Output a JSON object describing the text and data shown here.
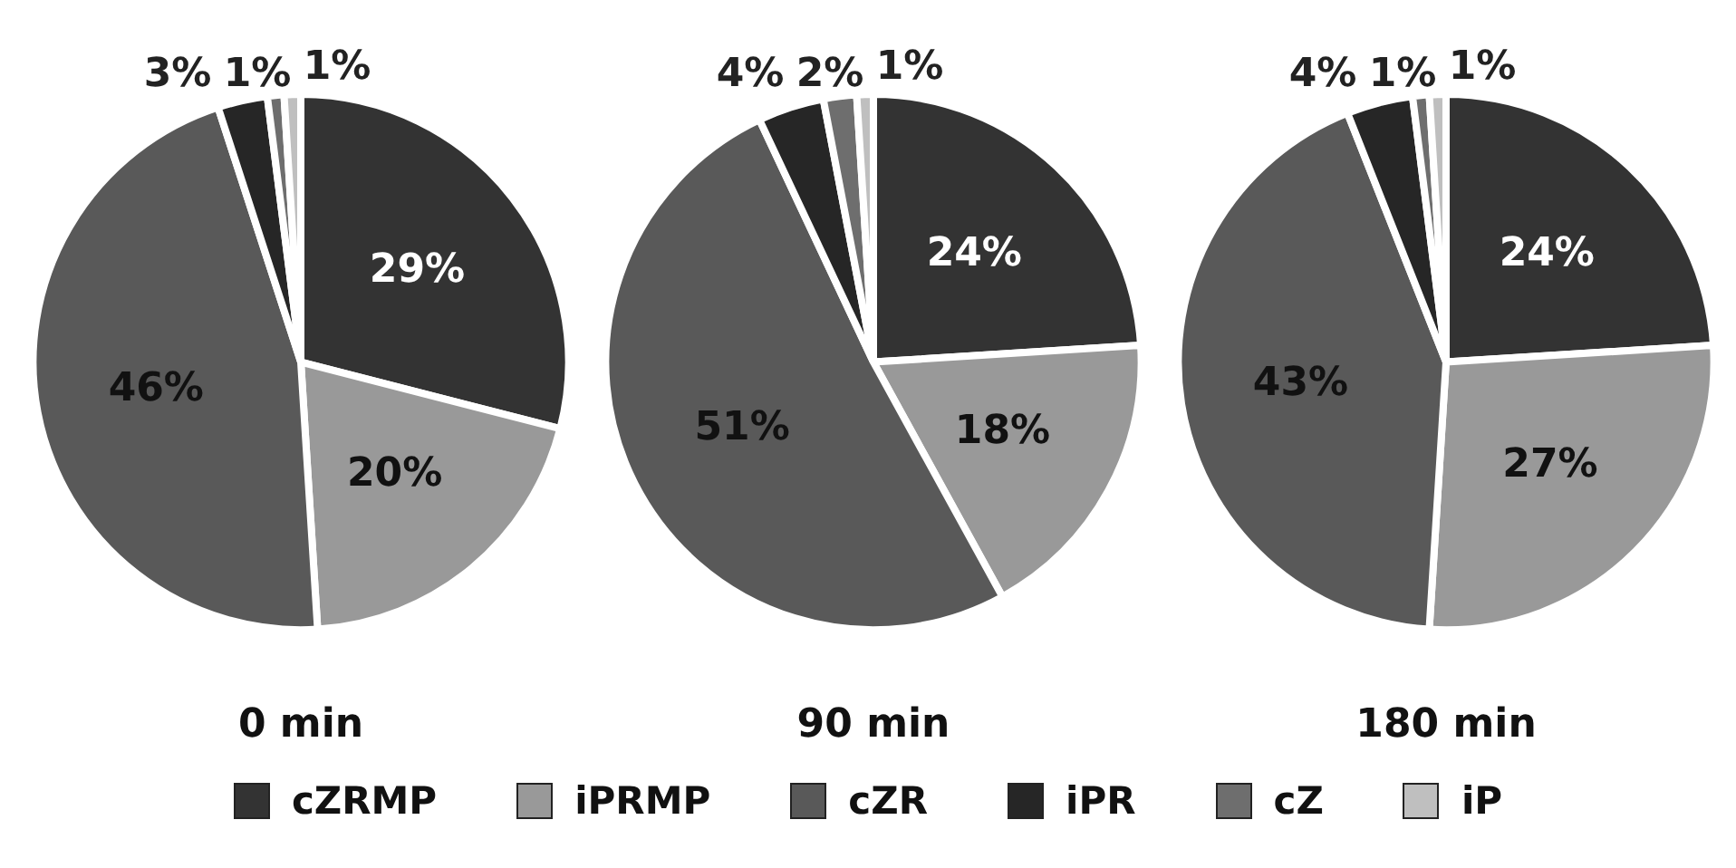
{
  "chart_data": [
    {
      "type": "pie",
      "title": "0 min",
      "categories": [
        "cZRMP",
        "iPRMP",
        "cZR",
        "iPR",
        "cZ",
        "iP"
      ],
      "values": [
        29,
        20,
        46,
        3,
        1,
        1
      ],
      "colors": [
        "#333333",
        "#999999",
        "#595959",
        "#262626",
        "#6e6e6e",
        "#bfbfbf"
      ],
      "value_labels": [
        "29%",
        "20%",
        "46%",
        "3%",
        "1%",
        "1%"
      ],
      "legend": "bottom"
    },
    {
      "type": "pie",
      "title": "90 min",
      "categories": [
        null,
        null,
        null,
        null,
        null,
        null
      ],
      "values": [
        24,
        18,
        51,
        4,
        2,
        1
      ],
      "colors": [
        "#333333",
        "#999999",
        "#595959",
        "#262626",
        "#6e6e6e",
        "#bfbfbf"
      ],
      "value_labels": [
        "24%",
        "18%",
        "51%",
        "4%",
        "2%",
        "1%"
      ]
    },
    {
      "type": "pie",
      "title": "180 min",
      "categories": [
        null,
        null,
        null,
        null,
        null,
        null
      ],
      "values": [
        24,
        27,
        43,
        4,
        1,
        1
      ],
      "colors": [
        "#333333",
        "#999999",
        "#595959",
        "#262626",
        "#6e6e6e",
        "#bfbfbf"
      ],
      "value_labels": [
        "24%",
        "27%",
        "43%",
        "4%",
        "1%",
        "1%"
      ]
    }
  ]
}
